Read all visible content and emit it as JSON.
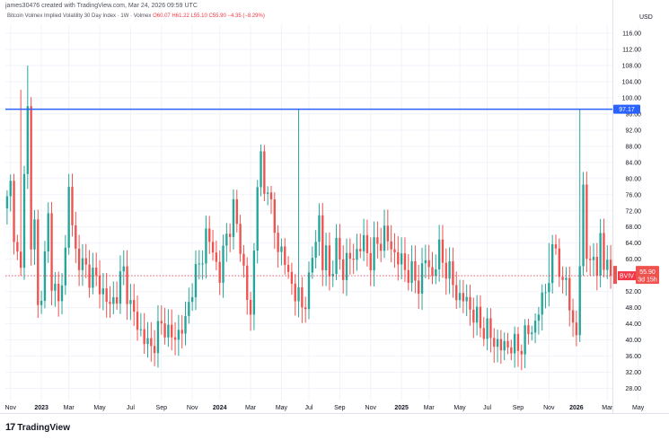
{
  "header": {
    "creator": "james30476 created with TradingView.com, Mar 24, 2026 09:59 UTC",
    "symbol": "Bitcoin Volmex Implied Volatility 30 Day Index · 1W · Volmex",
    "ohlc": "O60.07 H61.22 L55.10 C55.90 −4.35 (−8.29%)"
  },
  "currency": "USD",
  "logo_text": "TradingView",
  "colors": {
    "up": "#26a69a",
    "down": "#ef5350",
    "hline": "#2962ff",
    "last_price_line": "#f23645",
    "symbol_tag": "#f23645",
    "grid": "#f0f3fa"
  },
  "chart_data": {
    "type": "candlestick",
    "title": "Bitcoin Volmex Implied Volatility 30 Day Index",
    "interval": "1W",
    "ylim": [
      25,
      118
    ],
    "y_ticks": [
      28,
      32,
      36,
      40,
      44,
      48,
      52,
      56,
      60,
      64,
      68,
      72,
      76,
      80,
      84,
      88,
      92,
      96,
      100,
      104,
      108,
      112,
      116
    ],
    "x_ticks": [
      {
        "label": "Nov",
        "bold": false,
        "week": 1
      },
      {
        "label": "2023",
        "bold": true,
        "week": 10
      },
      {
        "label": "Mar",
        "bold": false,
        "week": 18
      },
      {
        "label": "May",
        "bold": false,
        "week": 27
      },
      {
        "label": "Jul",
        "bold": false,
        "week": 36
      },
      {
        "label": "Sep",
        "bold": false,
        "week": 45
      },
      {
        "label": "Nov",
        "bold": false,
        "week": 54
      },
      {
        "label": "2024",
        "bold": true,
        "week": 62
      },
      {
        "label": "Mar",
        "bold": false,
        "week": 71
      },
      {
        "label": "May",
        "bold": false,
        "week": 80
      },
      {
        "label": "Jul",
        "bold": false,
        "week": 88
      },
      {
        "label": "Sep",
        "bold": false,
        "week": 97
      },
      {
        "label": "Nov",
        "bold": false,
        "week": 106
      },
      {
        "label": "2025",
        "bold": true,
        "week": 115
      },
      {
        "label": "Mar",
        "bold": false,
        "week": 123
      },
      {
        "label": "May",
        "bold": false,
        "week": 132
      },
      {
        "label": "Jul",
        "bold": false,
        "week": 140
      },
      {
        "label": "Sep",
        "bold": false,
        "week": 149
      },
      {
        "label": "Nov",
        "bold": false,
        "week": 158
      },
      {
        "label": "2026",
        "bold": true,
        "week": 166
      },
      {
        "label": "Mar",
        "bold": false,
        "week": 175
      },
      {
        "label": "May",
        "bold": false,
        "week": 184
      }
    ],
    "horizontal_line": {
      "value": 97.17,
      "label": "97.17"
    },
    "last_price": {
      "value": 55.9,
      "label": "55.90",
      "countdown": "3d 15h",
      "symbol": "BVIV"
    },
    "anchors": [
      [
        0,
        74
      ],
      [
        1,
        78
      ],
      [
        2,
        68
      ],
      [
        3,
        60
      ],
      [
        4,
        56
      ],
      [
        5,
        84
      ],
      [
        6,
        97
      ],
      [
        7,
        62
      ],
      [
        8,
        70
      ],
      [
        9,
        48
      ],
      [
        10,
        52
      ],
      [
        11,
        60
      ],
      [
        12,
        70
      ],
      [
        13,
        56
      ],
      [
        14,
        52
      ],
      [
        15,
        48
      ],
      [
        16,
        56
      ],
      [
        17,
        62
      ],
      [
        18,
        78
      ],
      [
        19,
        68
      ],
      [
        20,
        62
      ],
      [
        22,
        58
      ],
      [
        25,
        56
      ],
      [
        28,
        52
      ],
      [
        30,
        48
      ],
      [
        32,
        52
      ],
      [
        34,
        57
      ],
      [
        36,
        48
      ],
      [
        38,
        44
      ],
      [
        40,
        40
      ],
      [
        42,
        38
      ],
      [
        44,
        42
      ],
      [
        46,
        44
      ],
      [
        48,
        40
      ],
      [
        50,
        42
      ],
      [
        52,
        44
      ],
      [
        54,
        54
      ],
      [
        56,
        58
      ],
      [
        58,
        66
      ],
      [
        60,
        62
      ],
      [
        62,
        56
      ],
      [
        64,
        66
      ],
      [
        66,
        72
      ],
      [
        68,
        64
      ],
      [
        70,
        50
      ],
      [
        71,
        46
      ],
      [
        72,
        62
      ],
      [
        73,
        80
      ],
      [
        74,
        84
      ],
      [
        75,
        76
      ],
      [
        76,
        80
      ],
      [
        77,
        72
      ],
      [
        78,
        66
      ],
      [
        80,
        62
      ],
      [
        82,
        56
      ],
      [
        84,
        52
      ],
      [
        86,
        48
      ],
      [
        88,
        54
      ],
      [
        89,
        60
      ],
      [
        90,
        66
      ],
      [
        91,
        70
      ],
      [
        92,
        58
      ],
      [
        93,
        62
      ],
      [
        94,
        56
      ],
      [
        96,
        62
      ],
      [
        98,
        58
      ],
      [
        100,
        60
      ],
      [
        102,
        62
      ],
      [
        104,
        64
      ],
      [
        106,
        60
      ],
      [
        108,
        64
      ],
      [
        110,
        66
      ],
      [
        112,
        63
      ],
      [
        114,
        60
      ],
      [
        116,
        58
      ],
      [
        118,
        56
      ],
      [
        120,
        54
      ],
      [
        122,
        60
      ],
      [
        124,
        56
      ],
      [
        126,
        62
      ],
      [
        128,
        58
      ],
      [
        130,
        54
      ],
      [
        132,
        50
      ],
      [
        134,
        50
      ],
      [
        136,
        46
      ],
      [
        138,
        44
      ],
      [
        140,
        42
      ],
      [
        142,
        40
      ],
      [
        144,
        38
      ],
      [
        146,
        39
      ],
      [
        148,
        38
      ],
      [
        150,
        39
      ],
      [
        152,
        42
      ],
      [
        154,
        44
      ],
      [
        156,
        50
      ],
      [
        158,
        56
      ],
      [
        160,
        64
      ],
      [
        161,
        58
      ],
      [
        162,
        52
      ],
      [
        163,
        56
      ],
      [
        164,
        48
      ],
      [
        165,
        44
      ],
      [
        166,
        42
      ],
      [
        167,
        56
      ],
      [
        168,
        80
      ],
      [
        169,
        62
      ],
      [
        170,
        56
      ],
      [
        171,
        62
      ],
      [
        172,
        58
      ],
      [
        173,
        64
      ],
      [
        174,
        58
      ],
      [
        175,
        60
      ],
      [
        176,
        56
      ]
    ],
    "spikes": [
      [
        4,
        102
      ],
      [
        6,
        108
      ],
      [
        85,
        97.17
      ],
      [
        167,
        97.17
      ]
    ],
    "lows": [
      [
        43,
        33.5
      ],
      [
        147,
        35
      ]
    ],
    "highs": [
      [
        74,
        88
      ],
      [
        104,
        70
      ],
      [
        110,
        70
      ],
      [
        158,
        64
      ]
    ],
    "weeks": 177
  }
}
